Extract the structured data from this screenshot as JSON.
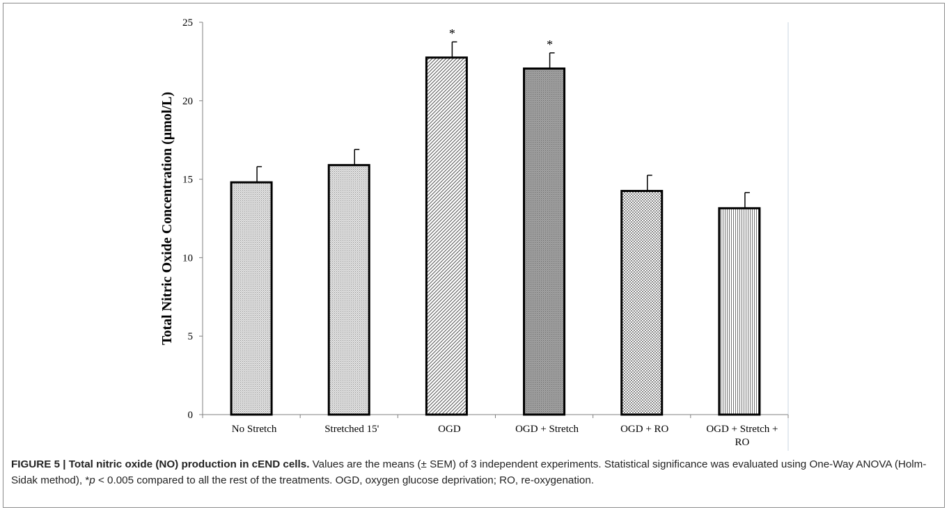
{
  "chart_data": {
    "type": "bar",
    "categories": [
      "No Stretch",
      "Stretched 15'",
      "OGD",
      "OGD + Stretch",
      "OGD + RO",
      [
        "OGD + Stretch +",
        "RO"
      ]
    ],
    "values": [
      14.8,
      15.9,
      22.75,
      22.05,
      14.25,
      13.15
    ],
    "errors": [
      1.0,
      1.0,
      1.0,
      1.0,
      1.0,
      1.0
    ],
    "significance": [
      "",
      "",
      "*",
      "*",
      "",
      ""
    ],
    "ylabel": "Total Nitric Oxide Concentration (µmol/L)",
    "xlabel": "",
    "ylim": [
      0,
      25
    ],
    "yticks": [
      0,
      5,
      10,
      15,
      20,
      25
    ],
    "grid": false,
    "patterns": [
      "fine-dots",
      "fine-dots",
      "diagonal-hatch",
      "dark-dots",
      "checker",
      "vertical-lines"
    ]
  },
  "caption": {
    "label": "FIGURE 5 | Total nitric oxide (NO) production in cEND cells.",
    "text_before_p": " Values are the means (± SEM) of 3 independent experiments. Statistical significance was evaluated using One-Way ANOVA (Holm-Sidak method), *",
    "p_symbol": "p",
    "text_after_p": " < 0.005 compared to all the rest of the treatments. OGD, oxygen glucose deprivation; RO, re-oxygenation."
  }
}
